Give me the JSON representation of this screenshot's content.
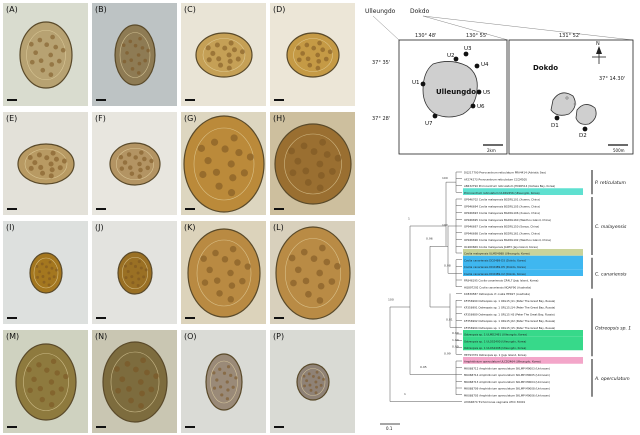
{
  "panels": [
    {
      "label": "(A)"
    },
    {
      "label": "(B)"
    },
    {
      "label": "(C)"
    },
    {
      "label": "(D)"
    },
    {
      "label": "(E)"
    },
    {
      "label": "(F)"
    },
    {
      "label": "(G)"
    },
    {
      "label": "(H)"
    },
    {
      "label": "(I)"
    },
    {
      "label": "(J)"
    },
    {
      "label": "(K)"
    },
    {
      "label": "(L)"
    },
    {
      "label": "(M)"
    },
    {
      "label": "(N)"
    },
    {
      "label": "(O)"
    },
    {
      "label": "(P)"
    }
  ],
  "map": {
    "region_top_left": "Ulleungdo",
    "region_top_right": "Dokdo",
    "lon_ticks": [
      "130° 48'",
      "130° 55'",
      "131° 52'"
    ],
    "lat_left_top": "37° 35'",
    "lat_left_bottom": "37° 28'",
    "lat_right": "37° 14.30'",
    "island_left": "Ulleungdo",
    "island_right": "Dokdo",
    "stations_left": [
      "U1",
      "U2",
      "U3",
      "U4",
      "U5",
      "U6",
      "U7"
    ],
    "stations_right": [
      "D1",
      "D2"
    ],
    "scale_left": "2km",
    "scale_right": "500m",
    "north": "N"
  },
  "tree": {
    "taxa": [
      "DQ217790 Prorocentrum reticulatum PRA4414 (Adriatic Sea)",
      "AF274273 Prorocentrum reticulatum CCCM505",
      "AB432790 Prorocentrum reticulatum JH090514 (Ushiwa Bay, Korea)",
      "Prorocentrum reticulatum ULRD2456 (Ulleungdo, Korea)",
      "OP946702 Coolia malayensis BGDRL101 (Xuwen, China)",
      "OP946694 Coolia malayensis BGDRL105 (Xuwen, China)",
      "OP946693 Coolia malayensis BGDRL106 (Xuwen, China)",
      "OP946695 Coolia malayensis BGDRL160 (Weizhou Island, China)",
      "OP946697 Coolia malayensis BGDRL150 (Sanya, China)",
      "OP946698 Coolia malayensis BGDRL161 (Xuwen, China)",
      "OP946696 Coolia malayensis BGDRL192 (Weizhou Island, China)",
      "OL960669 Coolia malayensis JG9P3 (Jeju Island, Korea)",
      "Coolia malayensis ULMD4988 (Ulleungdo, Korea)",
      "Coolia canariensis DD2489-D3 (Dokdo, Korea)",
      "Coolia canariensis DD2489-D5 (Dokdo, Korea)",
      "Coolia canariensis DD2489-C2 (Dokdo, Korea)",
      "FR846195 Coolia canariensis CR4L7 (Jeju Island, Korea)",
      "HQ897292 Coolia canariensis NQAIF90 (Australia)",
      "KX839587 Ostreopsis cf. ovata HER27 (Australia)",
      "KF356990 Ostreopsis sp. 1 ORL15 J11 (Peter The Great Bay, Russia)",
      "KF356991 Ostreopsis sp. 1 ORL15 J14 (Peter The Great Bay, Russia)",
      "KF356989 Ostreopsis sp. 1 ORL15 H3 (Peter The Great Bay, Russia)",
      "KF356992 Ostreopsis sp. 1 ORL15 J22 (Peter The Great Bay, Russia)",
      "KF356994 Ostreopsis sp. 1 ORL15 J15 (Peter The Great Bay, Russia)",
      "Ostreopsis sp. 1 ULMD2491 (Ulleungdo, Korea)",
      "Ostreopsis sp. 1 ULOS2490 (Ulleungdo, Korea)",
      "Ostreopsis sp. 1 ULOS2498 (Ulleungdo, Korea)",
      "HE793379 Ostreopsis sp. 1 (Jeju Island, Korea)",
      "Amphidinium operculatum ULCD2464 (Ulleungdo, Korea)",
      "MK068712 Amphidinium operculatum SKLMP M9003 (Unknown)",
      "MK068714 Amphidinium operculatum SKLMP M9005 (Unknown)",
      "MK068713 Amphidinium operculatum SKLMP M9004 (Unknown)",
      "MK068709 Amphidinium operculatum SKLMP M9008 (Unknown)",
      "MK068705 Amphidinium operculatum SKLMP M9006 (Unknown)",
      "AY064874 Trichomonas vaginalis ATCC 30001"
    ],
    "clades": [
      {
        "name": "P. reticulatum"
      },
      {
        "name": "C. malayensis"
      },
      {
        "name": "C. canariensis"
      },
      {
        "name": "Ostreopsis sp. 1"
      },
      {
        "name": "A. operculatum"
      }
    ],
    "supports": [
      "100",
      "100",
      "0.96",
      "1",
      "0.98",
      "0.81",
      "0.99",
      "1.00",
      "0.99",
      "0.99",
      "100",
      "0.95",
      "1"
    ],
    "scale_label": "0.1"
  },
  "colors": {
    "highlight_cyan": "#5fe0d0",
    "highlight_olive": "#c9d39a",
    "highlight_blue": "#3fb7f0",
    "highlight_green": "#37d98a",
    "highlight_pink": "#f3a6c9"
  }
}
